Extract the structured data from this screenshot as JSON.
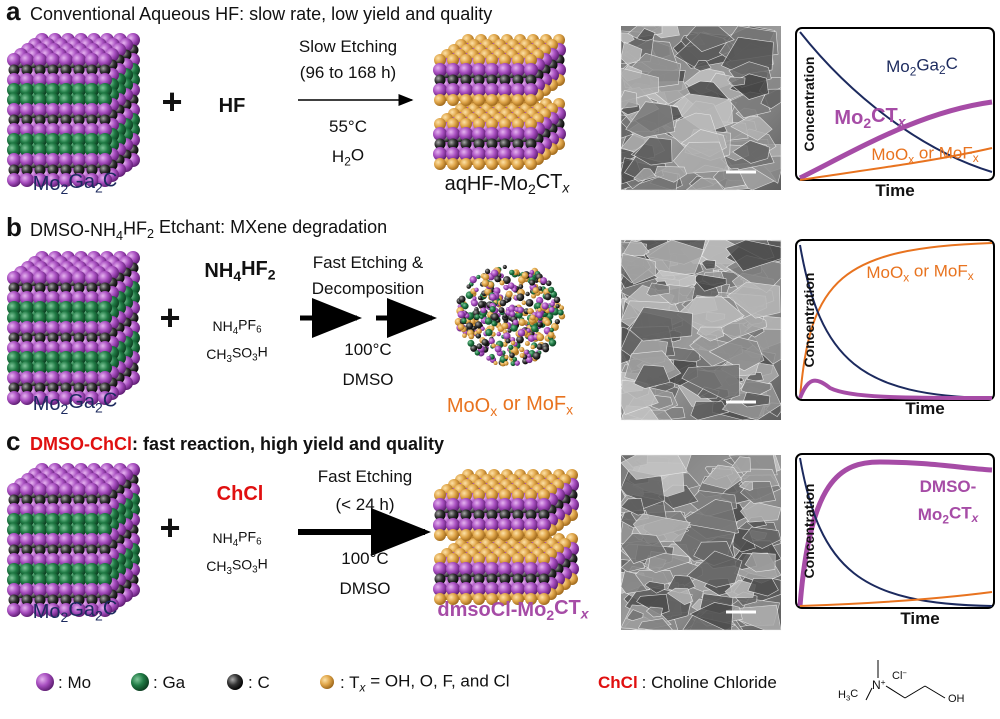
{
  "panels": [
    {
      "label": "a",
      "title": [
        {
          "t": "Conventional Aqueous HF: slow rate, low yield and quality"
        }
      ],
      "reactant": [
        {
          "t": "Mo"
        },
        {
          "s": "2"
        },
        {
          "t": "Ga"
        },
        {
          "s": "2"
        },
        {
          "t": "C"
        }
      ],
      "reagent": [
        {
          "t": "HF"
        }
      ],
      "conditions_above": [
        [
          {
            "t": "Slow Etching"
          }
        ],
        [
          {
            "t": "(96 to 168 h)"
          }
        ]
      ],
      "conditions_below": [
        [
          {
            "t": "55°C"
          }
        ],
        [
          {
            "t": "H"
          },
          {
            "s": "2"
          },
          {
            "t": "O"
          }
        ]
      ],
      "product": [
        {
          "t": "aqHF-Mo"
        },
        {
          "s": "2"
        },
        {
          "t": "CT"
        },
        {
          "s": "x",
          "i": true
        }
      ],
      "graph": {
        "y_label": "Concentration",
        "x_label": "Time",
        "curve_labels": [
          [
            {
              "t": "Mo"
            },
            {
              "s": "2"
            },
            {
              "t": "Ga"
            },
            {
              "s": "2"
            },
            {
              "t": "C"
            }
          ],
          [
            {
              "t": "Mo"
            },
            {
              "s": "2"
            },
            {
              "t": "CT"
            },
            {
              "s": "x",
              "i": true
            }
          ],
          [
            {
              "t": "MoO"
            },
            {
              "s": "x"
            },
            {
              "t": " or MoF"
            },
            {
              "s": "x"
            }
          ]
        ]
      }
    },
    {
      "label": "b",
      "title": [
        {
          "t": "DMSO-NH"
        },
        {
          "s": "4"
        },
        {
          "t": "HF"
        },
        {
          "s": "2"
        },
        {
          "t": " Etchant: MXene degradation"
        }
      ],
      "reactant": [
        {
          "t": "Mo"
        },
        {
          "s": "2"
        },
        {
          "t": "Ga"
        },
        {
          "s": "2"
        },
        {
          "t": "C"
        }
      ],
      "reagent": [
        {
          "t": "NH"
        },
        {
          "s": "4"
        },
        {
          "t": "HF"
        },
        {
          "s": "2"
        }
      ],
      "additives": [
        [
          {
            "t": "NH"
          },
          {
            "s": "4"
          },
          {
            "t": "PF"
          },
          {
            "s": "6"
          }
        ],
        [
          {
            "t": "CH"
          },
          {
            "s": "3"
          },
          {
            "t": "SO"
          },
          {
            "s": "3"
          },
          {
            "t": "H"
          }
        ]
      ],
      "conditions_above": [
        [
          {
            "t": "Fast Etching &"
          }
        ],
        [
          {
            "t": "Decomposition"
          }
        ]
      ],
      "conditions_below": [
        [
          {
            "t": "100°C"
          }
        ],
        [
          {
            "t": "DMSO"
          }
        ]
      ],
      "product": [
        {
          "t": "MoO"
        },
        {
          "s": "x"
        },
        {
          "t": " or MoF"
        },
        {
          "s": "x"
        }
      ],
      "graph": {
        "y_label": "Concentration",
        "x_label": "Time",
        "curve_labels": [
          [
            {
              "t": "MoO"
            },
            {
              "s": "x"
            },
            {
              "t": " or MoF"
            },
            {
              "s": "x"
            }
          ]
        ]
      }
    },
    {
      "label": "c",
      "title_highlight": "DMSO-ChCl",
      "title": ": fast reaction, high yield and quality",
      "reactant": [
        {
          "t": "Mo"
        },
        {
          "s": "2"
        },
        {
          "t": "Ga"
        },
        {
          "s": "2"
        },
        {
          "t": "C"
        }
      ],
      "reagent": [
        {
          "t": "ChCl"
        }
      ],
      "additives": [
        [
          {
            "t": "NH"
          },
          {
            "s": "4"
          },
          {
            "t": "PF"
          },
          {
            "s": "6"
          }
        ],
        [
          {
            "t": "CH"
          },
          {
            "s": "3"
          },
          {
            "t": "SO"
          },
          {
            "s": "3"
          },
          {
            "t": "H"
          }
        ]
      ],
      "conditions_above": [
        [
          {
            "t": "Fast Etching"
          }
        ],
        [
          {
            "t": "(< 24 h)"
          }
        ]
      ],
      "conditions_below": [
        [
          {
            "t": "100°C"
          }
        ],
        [
          {
            "t": "DMSO"
          }
        ]
      ],
      "product": [
        {
          "t": "dmsoCl-Mo"
        },
        {
          "s": "2"
        },
        {
          "t": "CT"
        },
        {
          "s": "x",
          "i": true
        }
      ],
      "graph": {
        "y_label": "Concentration",
        "x_label": "Time",
        "curve_labels": [
          [
            {
              "t": "DMSO-"
            }
          ],
          [
            {
              "t": "Mo"
            },
            {
              "s": "2"
            },
            {
              "t": "CT"
            },
            {
              "s": "x",
              "i": true
            }
          ]
        ]
      }
    }
  ],
  "legend": {
    "items": [
      [
        {
          "t": ": Mo"
        }
      ],
      [
        {
          "t": ": Ga"
        }
      ],
      [
        {
          "t": ": C"
        }
      ],
      [
        {
          "t": ": T"
        },
        {
          "s": "x",
          "i": true
        },
        {
          "t": " = OH, O, F, and Cl"
        }
      ]
    ],
    "abbreviation": "ChCl",
    "definition": ": Choline Chloride",
    "structure": {
      "nitrogen": [
        {
          "t": "N"
        },
        {
          "p": "+"
        }
      ],
      "counterion": [
        {
          "t": "Cl"
        },
        {
          "p": "−"
        }
      ],
      "methyl": [
        {
          "t": "H"
        },
        {
          "s": "3"
        },
        {
          "t": "C"
        }
      ],
      "hydroxyl": "OH"
    }
  }
}
